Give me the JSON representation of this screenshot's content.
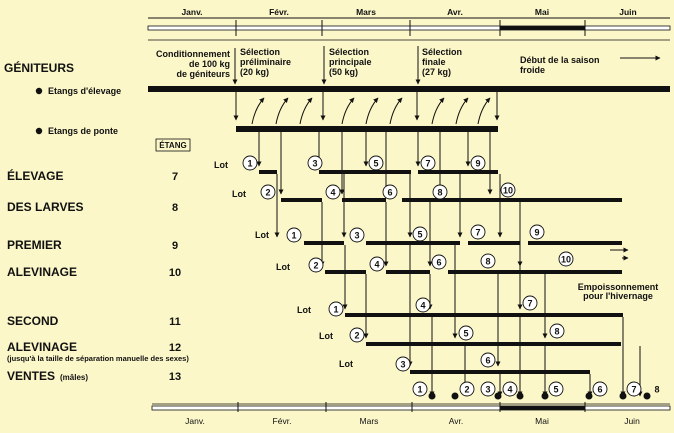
{
  "months_top": [
    "Janv.",
    "Févr.",
    "Mars",
    "Avr.",
    "Mai",
    "Juin"
  ],
  "months_bottom": [
    "Janv.",
    "Févr.",
    "Mars",
    "Avr.",
    "Mai",
    "Juin"
  ],
  "geniteurs": {
    "title": "GÉNITEURS",
    "rearing_ponds": "Etangs d'élevage",
    "spawning_ponds": "Etangs de ponte"
  },
  "header_notes": {
    "conditioning": [
      "Conditionnement",
      "de 100 kg",
      "de géniteurs"
    ],
    "preliminary": [
      "Sélection",
      "préliminaire",
      "(20 kg)"
    ],
    "main": [
      "Sélection",
      "principale",
      "(50 kg)"
    ],
    "final": [
      "Sélection",
      "finale",
      "(27 kg)"
    ],
    "cold_season": [
      "Début de la saison",
      "froide"
    ]
  },
  "etang_header": "ÉTANG",
  "stages": [
    {
      "id": "elevage",
      "label": "ÉLEVAGE",
      "pond": "7"
    },
    {
      "id": "larves",
      "label": "DES LARVES",
      "pond": "8"
    },
    {
      "id": "premier",
      "label": "PREMIER",
      "pond": "9"
    },
    {
      "id": "alevinage1",
      "label": "ALEVINAGE",
      "pond": "10"
    },
    {
      "id": "second",
      "label": "SECOND",
      "pond": "11"
    },
    {
      "id": "alevinage2",
      "label": "ALEVINAGE",
      "pond": "12"
    },
    {
      "id": "ventes",
      "label": "VENTES",
      "pond": "13"
    }
  ],
  "alevinage2_note": "(jusqu'à la taille de séparation manuelle des sexes)",
  "ventes_note": "(mâles)",
  "lot_label": "Lot",
  "empoissonnement": [
    "Empoissonnement",
    "pour l'hivernage"
  ],
  "lots_7": [
    "1",
    "3",
    "5",
    "7",
    "9"
  ],
  "lots_8": [
    "2",
    "4",
    "6",
    "8",
    "10"
  ],
  "lots_9": [
    "1",
    "3",
    "5",
    "7",
    "9"
  ],
  "lots_10": [
    "2",
    "4",
    "6",
    "8",
    "10"
  ],
  "lots_11": [
    "1",
    "4",
    "7"
  ],
  "lots_12": [
    "2",
    "5",
    "8"
  ],
  "lots_13": [
    "3",
    "6"
  ],
  "sales_lots": [
    "1",
    "2",
    "3",
    "4",
    "5",
    "6",
    "7",
    "8"
  ]
}
